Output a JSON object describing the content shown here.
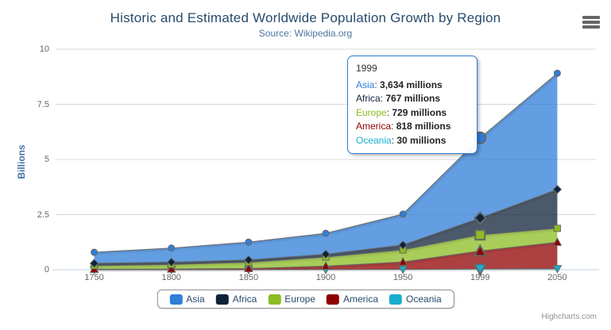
{
  "header": {
    "title": "Historic and Estimated Worldwide Population Growth by Region",
    "subtitle": "Source: Wikipedia.org"
  },
  "chart_data": {
    "type": "area",
    "stacking": "normal",
    "title": "Historic and Estimated Worldwide Population Growth by Region",
    "subtitle": "Source: Wikipedia.org",
    "categories": [
      "1750",
      "1800",
      "1850",
      "1900",
      "1950",
      "1999",
      "2050"
    ],
    "values_unit": "millions",
    "series": [
      {
        "name": "Asia",
        "color": "#2f7ed8",
        "marker": "circle",
        "values": [
          502,
          635,
          809,
          947,
          1402,
          3634,
          5268
        ]
      },
      {
        "name": "Africa",
        "color": "#0d233a",
        "marker": "diamond",
        "values": [
          106,
          107,
          111,
          133,
          221,
          767,
          1766
        ]
      },
      {
        "name": "Europe",
        "color": "#8bbc21",
        "marker": "square",
        "values": [
          163,
          203,
          276,
          408,
          547,
          729,
          628
        ]
      },
      {
        "name": "America",
        "color": "#910000",
        "marker": "triangle",
        "values": [
          18,
          31,
          54,
          156,
          339,
          818,
          1201
        ]
      },
      {
        "name": "Oceania",
        "color": "#1aadce",
        "marker": "triangle-down",
        "values": [
          2,
          2,
          2,
          6,
          13,
          30,
          46
        ]
      }
    ],
    "stack_order_bottom_to_top": [
      "Oceania",
      "America",
      "Europe",
      "Africa",
      "Asia"
    ],
    "yaxis": {
      "title": "Billions",
      "max": 10,
      "ticks": [
        0,
        2.5,
        5,
        7.5,
        10
      ],
      "tick_labels": [
        "0",
        "2.5",
        "5",
        "7.5",
        "10"
      ]
    },
    "grid": "horizontal-only",
    "legend_position": "bottom-center",
    "area_fill_opacity": 0.75,
    "line_color": "#666666",
    "axis_line_color": "#c0d0e0",
    "grid_line_color": "#d8d8d8"
  },
  "tooltip": {
    "header": "1999",
    "rows": [
      {
        "name": "Asia",
        "color": "#2f7ed8",
        "value": "3,634",
        "suffix": "millions"
      },
      {
        "name": "Africa",
        "color": "#0d233a",
        "value": "767",
        "suffix": "millions"
      },
      {
        "name": "Europe",
        "color": "#8bbc21",
        "value": "729",
        "suffix": "millions"
      },
      {
        "name": "America",
        "color": "#910000",
        "value": "818",
        "suffix": "millions"
      },
      {
        "name": "Oceania",
        "color": "#1aadce",
        "value": "30",
        "suffix": "millions"
      }
    ],
    "hovered": {
      "category": "1999",
      "category_index": 5,
      "primary_series": "Asia"
    }
  },
  "credits": {
    "label": "Highcharts.com"
  }
}
